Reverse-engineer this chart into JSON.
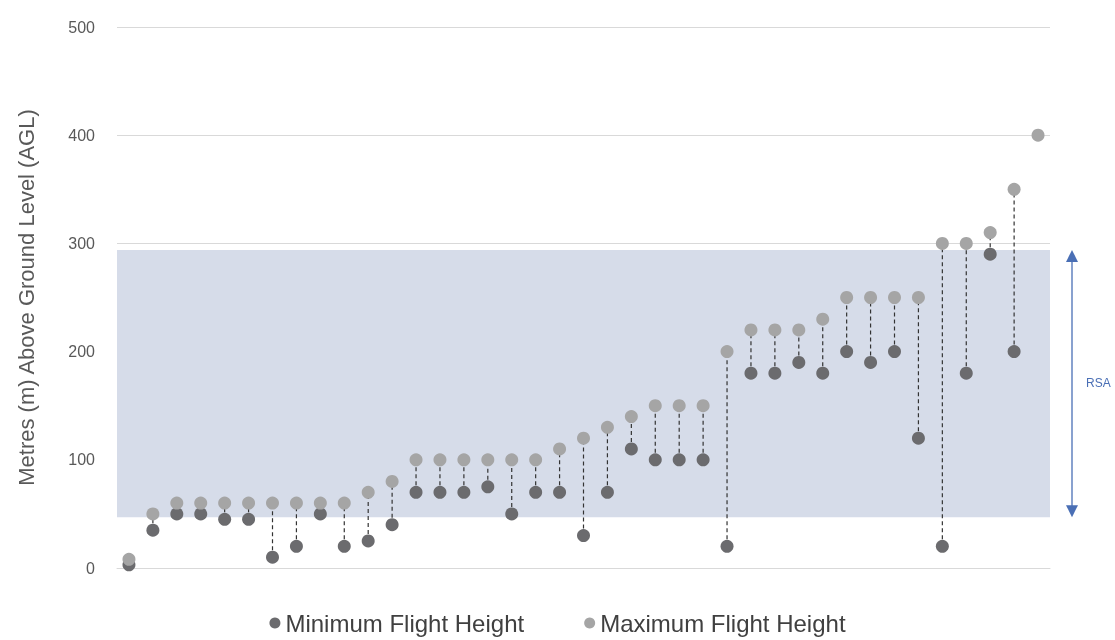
{
  "chart_data": {
    "type": "scatter",
    "ylabel": "Metres (m) Above Ground Level (AGL)",
    "categories": [
      null,
      null,
      null,
      null,
      null,
      null,
      null,
      null,
      null,
      null,
      null,
      null,
      null,
      null,
      null,
      null,
      null,
      null,
      null,
      null,
      null,
      null,
      null,
      null,
      null,
      null,
      null,
      null,
      null,
      null,
      null,
      null,
      null,
      null,
      null,
      null,
      null,
      null,
      null
    ],
    "series": [
      {
        "name": "Minimum Flight Height",
        "color": "#6b6b6e",
        "values": [
          3,
          35,
          50,
          50,
          45,
          45,
          10,
          20,
          50,
          20,
          25,
          40,
          70,
          70,
          70,
          75,
          50,
          70,
          70,
          30,
          70,
          110,
          100,
          100,
          100,
          20,
          180,
          180,
          190,
          180,
          200,
          190,
          200,
          120,
          20,
          180,
          290,
          200,
          null
        ]
      },
      {
        "name": "Maximum Flight Height",
        "color": "#a5a5a5",
        "values": [
          8,
          50,
          60,
          60,
          60,
          60,
          60,
          60,
          60,
          60,
          70,
          80,
          100,
          100,
          100,
          100,
          100,
          100,
          110,
          120,
          130,
          140,
          150,
          150,
          150,
          200,
          220,
          220,
          220,
          230,
          250,
          250,
          250,
          250,
          300,
          300,
          310,
          350,
          400
        ]
      }
    ],
    "ylim": [
      0,
      500
    ],
    "yticks": [
      0,
      100,
      200,
      300,
      400,
      500
    ],
    "grid": "y",
    "legend": "bottom",
    "marker": "circle",
    "bands": [
      {
        "axis": "y",
        "from": 47,
        "to": 294,
        "label": "RSA",
        "color": "#d6dce9"
      }
    ]
  }
}
